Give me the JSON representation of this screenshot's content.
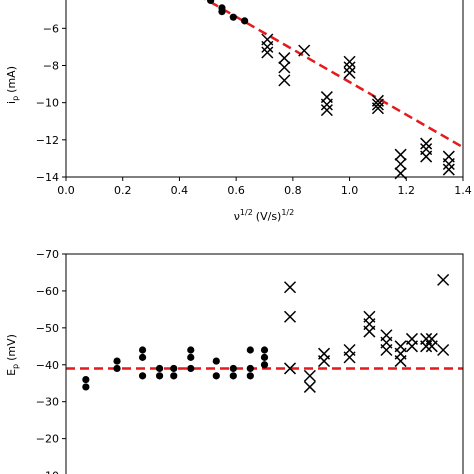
{
  "chart_data": [
    {
      "type": "scatter",
      "xlabel_main": "ν",
      "xlabel_sup1": "1/2",
      "xlabel_unit": "(V/s)",
      "xlabel_sup2": "1/2",
      "ylabel_main": "i",
      "ylabel_sub": "p",
      "ylabel_unit": "(mA)",
      "xlim": [
        0.0,
        1.4
      ],
      "ylim": [
        -14,
        -3.4
      ],
      "xticks": [
        "0.0",
        "0.2",
        "0.4",
        "0.6",
        "0.8",
        "1.0",
        "1.2",
        "1.4"
      ],
      "yticks": [
        {
          "value": -4,
          "label": "−4"
        },
        {
          "value": -6,
          "label": "−6"
        },
        {
          "value": -8,
          "label": "−8"
        },
        {
          "value": -10,
          "label": "−10"
        },
        {
          "value": -12,
          "label": "−12"
        },
        {
          "value": -14,
          "label": "−14"
        }
      ],
      "series": [
        {
          "marker": "dot",
          "x": [
            0.38,
            0.4,
            0.43,
            0.47,
            0.51,
            0.55,
            0.55,
            0.59,
            0.63
          ],
          "y": [
            -3.5,
            -3.7,
            -3.9,
            -4.2,
            -4.5,
            -4.9,
            -5.1,
            -5.4,
            -5.6
          ]
        },
        {
          "marker": "x",
          "x": [
            0.71,
            0.71,
            0.71,
            0.77,
            0.77,
            0.77,
            0.84,
            0.92,
            0.92,
            0.92,
            1.0,
            1.0,
            1.0,
            1.1,
            1.1,
            1.1,
            1.18,
            1.18,
            1.18,
            1.27,
            1.27,
            1.27,
            1.35,
            1.35,
            1.35
          ],
          "y": [
            -6.6,
            -7.0,
            -7.3,
            -7.6,
            -8.1,
            -8.8,
            -7.2,
            -9.7,
            -10.1,
            -10.4,
            -7.8,
            -8.1,
            -8.4,
            -9.9,
            -10.1,
            -10.3,
            -12.8,
            -13.3,
            -13.8,
            -12.2,
            -12.5,
            -12.9,
            -12.9,
            -13.3,
            -13.6
          ]
        }
      ],
      "fit_line": {
        "color": "#e41a1c",
        "style": "dashed",
        "x": [
          0.38,
          1.4
        ],
        "y": [
          -3.45,
          -12.4
        ]
      }
    },
    {
      "type": "scatter",
      "ylabel_main": "E",
      "ylabel_sub": "p",
      "ylabel_unit": "(mV)",
      "xlim": [
        0.0,
        1.4
      ],
      "ylim": [
        -70,
        -5
      ],
      "yticks": [
        {
          "value": -70,
          "label": "−70"
        },
        {
          "value": -60,
          "label": "−60"
        },
        {
          "value": -50,
          "label": "−50"
        },
        {
          "value": -40,
          "label": "−40"
        },
        {
          "value": -30,
          "label": "−30"
        },
        {
          "value": -20,
          "label": "−20"
        },
        {
          "value": -10,
          "label": "−10"
        }
      ],
      "series": [
        {
          "marker": "dot",
          "x": [
            0.07,
            0.07,
            0.18,
            0.18,
            0.27,
            0.27,
            0.27,
            0.33,
            0.33,
            0.38,
            0.38,
            0.44,
            0.44,
            0.44,
            0.53,
            0.53,
            0.59,
            0.59,
            0.65,
            0.65,
            0.65,
            0.7,
            0.7,
            0.7
          ],
          "y": [
            -34,
            -36,
            -39,
            -41,
            -37,
            -42,
            -44,
            -37,
            -39,
            -37,
            -39,
            -39,
            -42,
            -44,
            -37,
            -41,
            -37,
            -39,
            -37,
            -39,
            -44,
            -40,
            -42,
            -44
          ]
        },
        {
          "marker": "x",
          "x": [
            0.79,
            0.79,
            0.79,
            0.86,
            0.86,
            0.91,
            0.91,
            1.0,
            1.0,
            1.07,
            1.07,
            1.07,
            1.13,
            1.13,
            1.13,
            1.18,
            1.18,
            1.18,
            1.22,
            1.22,
            1.27,
            1.27,
            1.29,
            1.29,
            1.33,
            1.33
          ],
          "y": [
            -39,
            -53,
            -61,
            -34,
            -37,
            -41,
            -43,
            -42,
            -44,
            -49,
            -51,
            -53,
            -44,
            -46,
            -48,
            -41,
            -43,
            -45,
            -45,
            -47,
            -45,
            -47,
            -45,
            -47,
            -44,
            -63
          ]
        }
      ],
      "fit_line": {
        "color": "#e41a1c",
        "style": "dashed",
        "x": [
          0.0,
          1.4
        ],
        "y": [
          -39,
          -39
        ]
      }
    }
  ]
}
